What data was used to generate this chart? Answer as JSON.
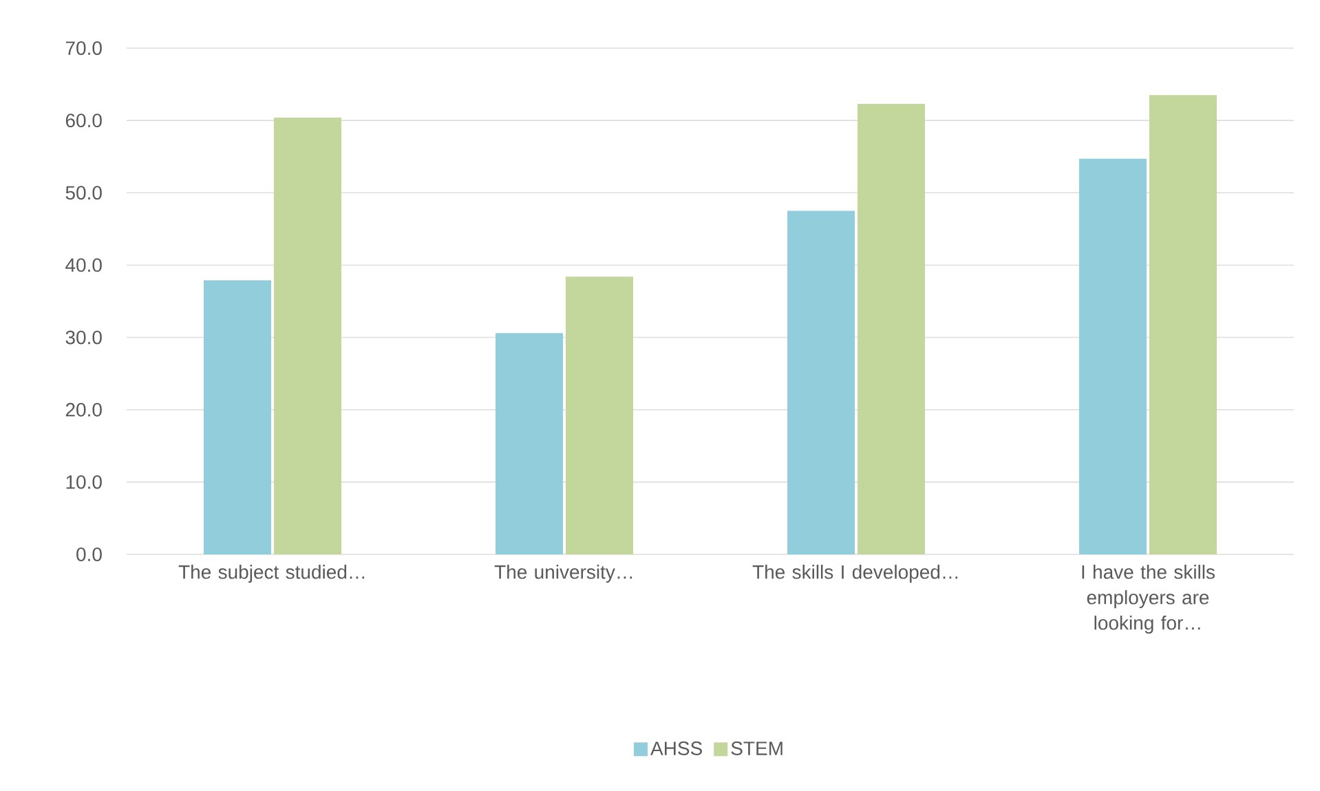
{
  "chart_data": {
    "type": "bar",
    "categories": [
      "The subject studied…",
      "The university…",
      "The skills I developed…",
      "I have the skills employers are looking for…"
    ],
    "series": [
      {
        "name": "AHSS",
        "color": "#92cddc",
        "values": [
          37.9,
          30.6,
          47.5,
          54.7
        ]
      },
      {
        "name": "STEM",
        "color": "#c3d69b",
        "values": [
          60.4,
          38.4,
          62.3,
          63.5
        ]
      }
    ],
    "ylim": [
      0,
      70
    ],
    "yticks": [
      {
        "value": 0,
        "label": "0.0"
      },
      {
        "value": 10,
        "label": "10.0"
      },
      {
        "value": 20,
        "label": "20.0"
      },
      {
        "value": 30,
        "label": "30.0"
      },
      {
        "value": 40,
        "label": "40.0"
      },
      {
        "value": 50,
        "label": "50.0"
      },
      {
        "value": 60,
        "label": "60.0"
      },
      {
        "value": 70,
        "label": "70.0"
      }
    ],
    "grid": "y",
    "legend": "bottom"
  }
}
